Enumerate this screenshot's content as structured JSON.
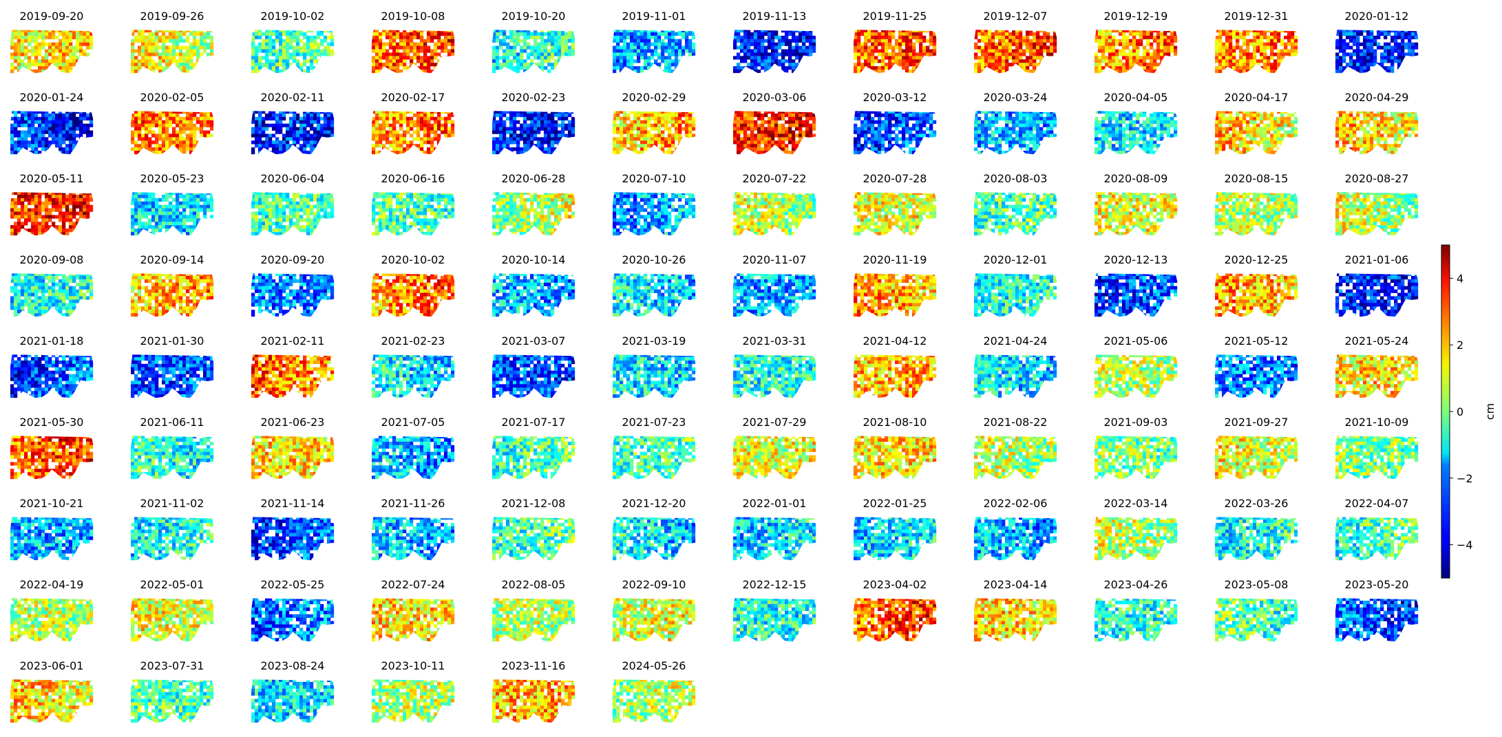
{
  "chart_data": {
    "type": "heatmap",
    "title": "",
    "panel_titles": [
      "2019-09-20",
      "2019-09-26",
      "2019-10-02",
      "2019-10-08",
      "2019-10-20",
      "2019-11-01",
      "2019-11-13",
      "2019-11-25",
      "2019-12-07",
      "2019-12-19",
      "2019-12-31",
      "2020-01-12",
      "2020-01-24",
      "2020-02-05",
      "2020-02-11",
      "2020-02-17",
      "2020-02-23",
      "2020-02-29",
      "2020-03-06",
      "2020-03-12",
      "2020-03-24",
      "2020-04-05",
      "2020-04-17",
      "2020-04-29",
      "2020-05-11",
      "2020-05-23",
      "2020-06-04",
      "2020-06-16",
      "2020-06-28",
      "2020-07-10",
      "2020-07-22",
      "2020-07-28",
      "2020-08-03",
      "2020-08-09",
      "2020-08-15",
      "2020-08-27",
      "2020-09-08",
      "2020-09-14",
      "2020-09-20",
      "2020-10-02",
      "2020-10-14",
      "2020-10-26",
      "2020-11-07",
      "2020-11-19",
      "2020-12-01",
      "2020-12-13",
      "2020-12-25",
      "2021-01-06",
      "2021-01-18",
      "2021-01-30",
      "2021-02-11",
      "2021-02-23",
      "2021-03-07",
      "2021-03-19",
      "2021-03-31",
      "2021-04-12",
      "2021-04-24",
      "2021-05-06",
      "2021-05-12",
      "2021-05-24",
      "2021-05-30",
      "2021-06-11",
      "2021-06-23",
      "2021-07-05",
      "2021-07-17",
      "2021-07-23",
      "2021-07-29",
      "2021-08-10",
      "2021-08-22",
      "2021-09-03",
      "2021-09-27",
      "2021-10-09",
      "2021-10-21",
      "2021-11-02",
      "2021-11-14",
      "2021-11-26",
      "2021-12-08",
      "2021-12-20",
      "2022-01-01",
      "2022-01-25",
      "2022-02-06",
      "2022-03-14",
      "2022-03-26",
      "2022-04-07",
      "2022-04-19",
      "2022-05-01",
      "2022-05-25",
      "2022-07-24",
      "2022-08-05",
      "2022-09-10",
      "2022-12-15",
      "2023-04-02",
      "2023-04-14",
      "2023-04-26",
      "2023-05-08",
      "2023-05-20",
      "2023-06-01",
      "2023-07-31",
      "2023-08-24",
      "2023-10-11",
      "2023-11-16",
      "2024-05-26"
    ],
    "panel_mean_cm": [
      1.5,
      1.0,
      -0.5,
      3.0,
      -1.0,
      -2.0,
      -3.5,
      3.0,
      3.0,
      2.5,
      2.5,
      -3.5,
      -3.5,
      2.5,
      -3.5,
      2.5,
      -3.5,
      2.0,
      3.5,
      -3.0,
      -2.0,
      -1.5,
      1.5,
      1.5,
      3.5,
      -1.5,
      -0.5,
      -0.5,
      0.5,
      -2.0,
      0.5,
      1.0,
      -0.5,
      1.0,
      0.5,
      0.5,
      -1.0,
      2.0,
      -2.5,
      2.5,
      -2.0,
      -1.5,
      -2.0,
      2.0,
      -1.0,
      -3.0,
      2.0,
      -3.5,
      -3.0,
      -3.0,
      2.5,
      -1.5,
      -3.0,
      -1.5,
      -1.0,
      2.0,
      -1.5,
      0.5,
      -2.5,
      1.5,
      3.0,
      -1.0,
      1.5,
      -2.0,
      -0.5,
      -0.5,
      1.0,
      1.5,
      0.5,
      0.0,
      1.0,
      0.0,
      -2.0,
      -1.0,
      -3.0,
      -2.0,
      -0.5,
      -1.5,
      -1.5,
      -1.5,
      -2.0,
      0.5,
      -1.0,
      -0.5,
      0.5,
      1.0,
      -2.5,
      1.5,
      0.5,
      1.0,
      -1.0,
      3.0,
      1.5,
      -1.0,
      -0.5,
      -3.0,
      1.5,
      -0.5,
      -1.5,
      0.5,
      2.0,
      0.5
    ],
    "color_scale": {
      "label": "cm",
      "range": [
        -5,
        5
      ],
      "ticks": [
        4,
        2,
        0,
        -2,
        -4
      ],
      "tick_labels": [
        "4",
        "2",
        "0",
        "−2",
        "−4"
      ],
      "colormap": "jet"
    },
    "grid": false,
    "legend_placement": "right"
  }
}
